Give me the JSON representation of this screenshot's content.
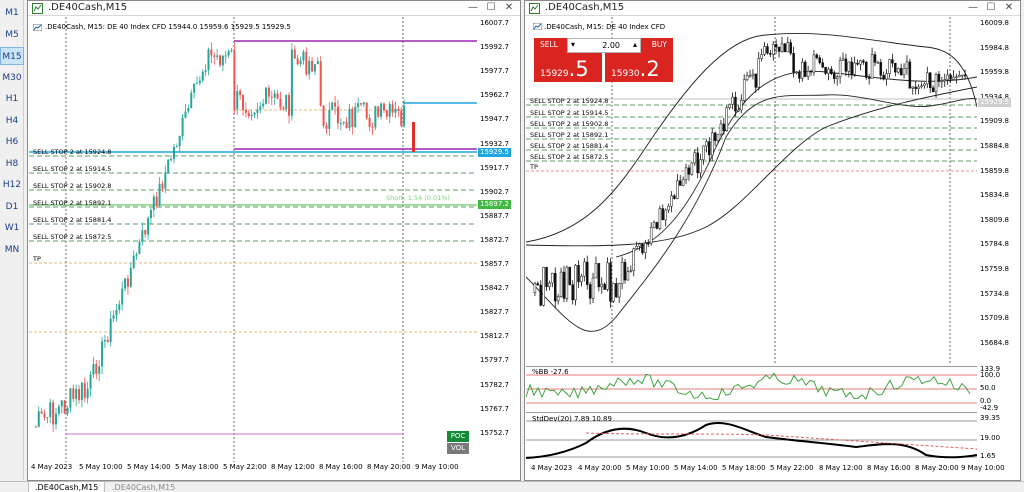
{
  "timeframes": [
    "M1",
    "M5",
    "M15",
    "M30",
    "H1",
    "H4",
    "H6",
    "H8",
    "H12",
    "D1",
    "W1",
    "MN"
  ],
  "active_timeframe": "M15",
  "left": {
    "title": ".DE40Cash,M15",
    "header": ".DE40Cash, M15:  DE 40 Index CFD   15944.0 15959.6 15929.5 15929.5",
    "price_ticks": [
      "16007.7",
      "15992.7",
      "15977.7",
      "15962.7",
      "15947.7",
      "15932.7",
      "15917.7",
      "15902.7",
      "15887.7",
      "15872.7",
      "15857.7",
      "15842.7",
      "15827.7",
      "15812.7",
      "15797.7",
      "15782.7",
      "15767.7",
      "15752.7"
    ],
    "price_tag_bid": "15929.5",
    "price_tag_level": "15897.2",
    "time_labels": [
      "4 May 2023",
      "5 May 10:00",
      "5 May 14:00",
      "5 May 18:00",
      "5 May 22:00",
      "8 May 12:00",
      "8 May 16:00",
      "8 May 20:00",
      "9 May 10:00"
    ],
    "orders": [
      "SELL STOP 2 at 15924.8",
      "SELL STOP 2 at 15914.5",
      "SELL STOP 2 at 15902.8",
      "SELL STOP 2 at 15892.1",
      "SELL STOP 2 at 15881.4",
      "SELL STOP 2 at 15872.5",
      "TP"
    ],
    "short_text": "Short: 1.54  (0.01%)",
    "poc_label": "POC",
    "vol_label": "VOL"
  },
  "right": {
    "title": ".DE40Cash,M15",
    "header": ".DE40Cash, M15:  DE 40 Index CFD",
    "price_ticks": [
      "16009.8",
      "15984.8",
      "15959.8",
      "15934.8",
      "15909.8",
      "15884.8",
      "15859.8",
      "15834.8",
      "15809.8",
      "15784.8",
      "15759.8",
      "15734.8",
      "15709.8",
      "15684.8"
    ],
    "price_tag_bid": "15929.5",
    "time_labels": [
      "4 May 2023",
      "4 May 20:00",
      "5 May 10:00",
      "5 May 14:00",
      "5 May 18:00",
      "5 May 22:00",
      "8 May 12:00",
      "8 May 16:00",
      "8 May 20:00",
      "9 May 10:00"
    ],
    "orders": [
      "SELL STOP 2 at 15924.8",
      "SELL STOP 2 at 15914.5",
      "SELL STOP 2 at 15902.8",
      "SELL STOP 2 at 15892.1",
      "SELL STOP 2 at 15881.4",
      "SELL STOP 2 at 15872.5",
      "TP"
    ],
    "trade_panel": {
      "sell_label": "SELL",
      "buy_label": "BUY",
      "lot": "2.00",
      "sell_price_small": "15929",
      "sell_price_big": ".5",
      "buy_price_small": "15930",
      "buy_price_big": ".2"
    },
    "bb_label": "%BB -27.6",
    "bb_ticks": [
      "133.9",
      "100.0",
      "50.0",
      "0.0",
      "-42.9"
    ],
    "stddev_label": "StdDev(20) 7.89 10.89",
    "stddev_ticks": [
      "39.35",
      "19.00",
      "1.65"
    ]
  },
  "tabs": [
    ".DE40Cash,M15",
    ".DE40Cash,M15"
  ],
  "colors": {
    "bull": "#26a69a",
    "bear": "#ef5350",
    "order_line": "#2e7d32",
    "purple": "#9c27b0",
    "cyan": "#1ea7e0",
    "trade_red": "#d9241f",
    "bb_line": "#2e9b2e"
  }
}
